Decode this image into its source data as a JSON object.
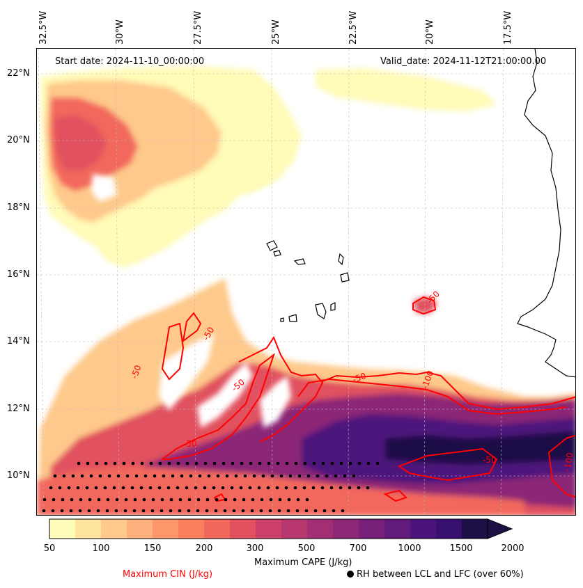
{
  "header": {
    "start_date": "Start date: 2024-11-10_00:00:00",
    "valid_date": "Valid_date: 2024-11-12T21:00:00.00"
  },
  "map": {
    "lon_labels": [
      "32.5°W",
      "30°W",
      "27.5°W",
      "25°W",
      "22.5°W",
      "20°W",
      "17.5°W"
    ],
    "lat_labels": [
      "22°N",
      "20°N",
      "18°N",
      "16°N",
      "14°N",
      "12°N",
      "10°N"
    ],
    "contour_labels": [
      "-50",
      "-50",
      "-50",
      "-50",
      "-50",
      "-100",
      "-100",
      "-50",
      "-50"
    ],
    "colors": {
      "cin_contour": "#ff0000",
      "coast": "#000000",
      "grid": "#bbbbbb"
    }
  },
  "colorbar": {
    "title": "Maximum CAPE (J/kg)",
    "tick_labels": [
      "50",
      "100",
      "150",
      "200",
      "300",
      "500",
      "700",
      "1000",
      "1500",
      "2000"
    ],
    "colors": [
      "#fffbb8",
      "#fee49c",
      "#fec98b",
      "#feb07c",
      "#fd9769",
      "#fc7f5d",
      "#f2675c",
      "#e1515f",
      "#cc3f68",
      "#b8376f",
      "#a22f73",
      "#8c2876",
      "#771f79",
      "#621a7b",
      "#4d137b",
      "#371070",
      "#1e1046"
    ]
  },
  "legend": {
    "cin_label": "Maximum CIN (J/kg)",
    "rh_label": "RH between LCL and LFC (over 60%)"
  }
}
